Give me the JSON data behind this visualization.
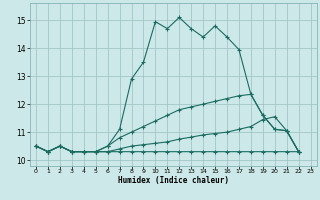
{
  "xlabel": "Humidex (Indice chaleur)",
  "xlim": [
    -0.5,
    23.5
  ],
  "ylim": [
    9.8,
    15.6
  ],
  "yticks": [
    10,
    11,
    12,
    13,
    14,
    15
  ],
  "xticks": [
    0,
    1,
    2,
    3,
    4,
    5,
    6,
    7,
    8,
    9,
    10,
    11,
    12,
    13,
    14,
    15,
    16,
    17,
    18,
    19,
    20,
    21,
    22,
    23
  ],
  "bg_color": "#cde8e8",
  "line_color": "#1a6b60",
  "grid_color": "#9bbfbf",
  "curve1_x": [
    0,
    1,
    2,
    3,
    4,
    5,
    6,
    7,
    8,
    9,
    10,
    11,
    12,
    13,
    14,
    15,
    16,
    17,
    18,
    19,
    20,
    21,
    22
  ],
  "curve1_y": [
    10.5,
    10.3,
    10.5,
    10.3,
    10.3,
    10.3,
    10.5,
    11.1,
    12.9,
    13.5,
    14.95,
    14.7,
    15.1,
    14.7,
    14.4,
    14.8,
    14.4,
    13.95,
    12.35,
    11.6,
    11.1,
    11.05,
    10.3
  ],
  "curve2_x": [
    0,
    1,
    2,
    3,
    4,
    5,
    6,
    7,
    8,
    9,
    10,
    11,
    12,
    13,
    14,
    15,
    16,
    17,
    18,
    19,
    20,
    21,
    22
  ],
  "curve2_y": [
    10.5,
    10.3,
    10.5,
    10.3,
    10.3,
    10.3,
    10.5,
    10.8,
    11.0,
    11.2,
    11.4,
    11.6,
    11.8,
    11.9,
    12.0,
    12.1,
    12.2,
    12.3,
    12.35,
    11.6,
    11.1,
    11.05,
    10.3
  ],
  "curve3_x": [
    0,
    1,
    2,
    3,
    4,
    5,
    6,
    7,
    8,
    9,
    10,
    11,
    12,
    13,
    14,
    15,
    16,
    17,
    18,
    19,
    20,
    21,
    22
  ],
  "curve3_y": [
    10.5,
    10.3,
    10.5,
    10.3,
    10.3,
    10.3,
    10.3,
    10.4,
    10.5,
    10.55,
    10.6,
    10.65,
    10.75,
    10.82,
    10.9,
    10.95,
    11.0,
    11.1,
    11.2,
    11.45,
    11.55,
    11.05,
    10.3
  ],
  "curve4_x": [
    0,
    1,
    2,
    3,
    4,
    5,
    6,
    7,
    8,
    9,
    10,
    11,
    12,
    13,
    14,
    15,
    16,
    17,
    18,
    19,
    20,
    21,
    22
  ],
  "curve4_y": [
    10.5,
    10.3,
    10.5,
    10.3,
    10.3,
    10.3,
    10.3,
    10.3,
    10.3,
    10.3,
    10.3,
    10.3,
    10.3,
    10.3,
    10.3,
    10.3,
    10.3,
    10.3,
    10.3,
    10.3,
    10.3,
    10.3,
    10.3
  ]
}
